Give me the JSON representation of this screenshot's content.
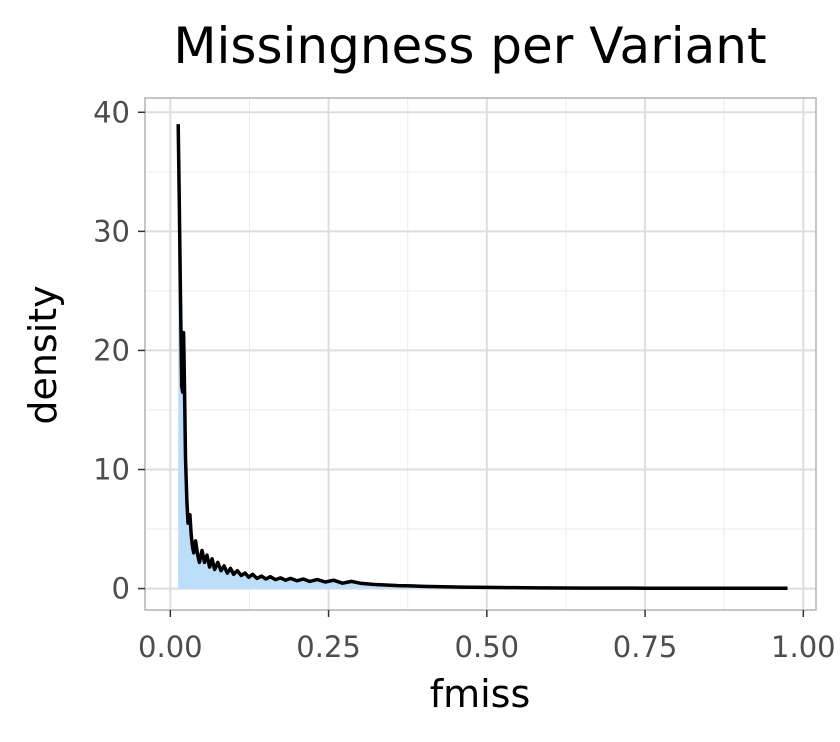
{
  "chart_data": {
    "type": "area",
    "title": "Missingness per Variant",
    "xlabel": "fmiss",
    "ylabel": "density",
    "xlim": [
      -0.04,
      1.02
    ],
    "ylim": [
      -1.8,
      41.2
    ],
    "x_ticks": [
      0.0,
      0.25,
      0.5,
      0.75,
      1.0
    ],
    "x_tick_labels": [
      "0.00",
      "0.25",
      "0.50",
      "0.75",
      "1.00"
    ],
    "y_ticks": [
      0,
      10,
      20,
      30,
      40
    ],
    "y_tick_labels": [
      "0",
      "10",
      "20",
      "30",
      "40"
    ],
    "grid": true,
    "fill_color": "#bbdefb",
    "line_color": "#000000",
    "series": [
      {
        "x": [
          0.0125,
          0.014,
          0.016,
          0.018,
          0.0195,
          0.021,
          0.0225,
          0.024,
          0.026,
          0.028,
          0.031,
          0.033,
          0.035,
          0.037,
          0.04,
          0.043,
          0.046,
          0.05,
          0.054,
          0.058,
          0.062,
          0.066,
          0.07,
          0.075,
          0.08,
          0.085,
          0.09,
          0.095,
          0.1,
          0.106,
          0.112,
          0.118,
          0.124,
          0.13,
          0.137,
          0.144,
          0.151,
          0.158,
          0.166,
          0.174,
          0.182,
          0.19,
          0.2,
          0.21,
          0.22,
          0.232,
          0.245,
          0.258,
          0.272,
          0.286,
          0.3,
          0.32,
          0.34,
          0.36,
          0.38,
          0.4,
          0.43,
          0.46,
          0.5,
          0.54,
          0.58,
          0.62,
          0.66,
          0.7,
          0.75,
          0.8,
          0.85,
          0.9,
          0.95,
          0.975
        ],
        "y": [
          39.0,
          33.0,
          25.0,
          17.0,
          16.5,
          21.5,
          16.3,
          11.0,
          7.5,
          5.5,
          6.2,
          4.5,
          3.5,
          3.0,
          4.0,
          2.9,
          2.2,
          3.2,
          2.2,
          2.8,
          1.8,
          2.5,
          1.6,
          2.2,
          1.5,
          1.9,
          1.3,
          1.7,
          1.2,
          1.5,
          1.1,
          1.3,
          0.95,
          1.2,
          0.85,
          1.05,
          0.8,
          1.0,
          0.75,
          0.9,
          0.7,
          0.85,
          0.65,
          0.8,
          0.6,
          0.75,
          0.55,
          0.7,
          0.45,
          0.6,
          0.45,
          0.35,
          0.3,
          0.25,
          0.22,
          0.18,
          0.15,
          0.12,
          0.1,
          0.08,
          0.06,
          0.05,
          0.04,
          0.04,
          0.03,
          0.03,
          0.02,
          0.02,
          0.02,
          0.02
        ]
      }
    ]
  }
}
